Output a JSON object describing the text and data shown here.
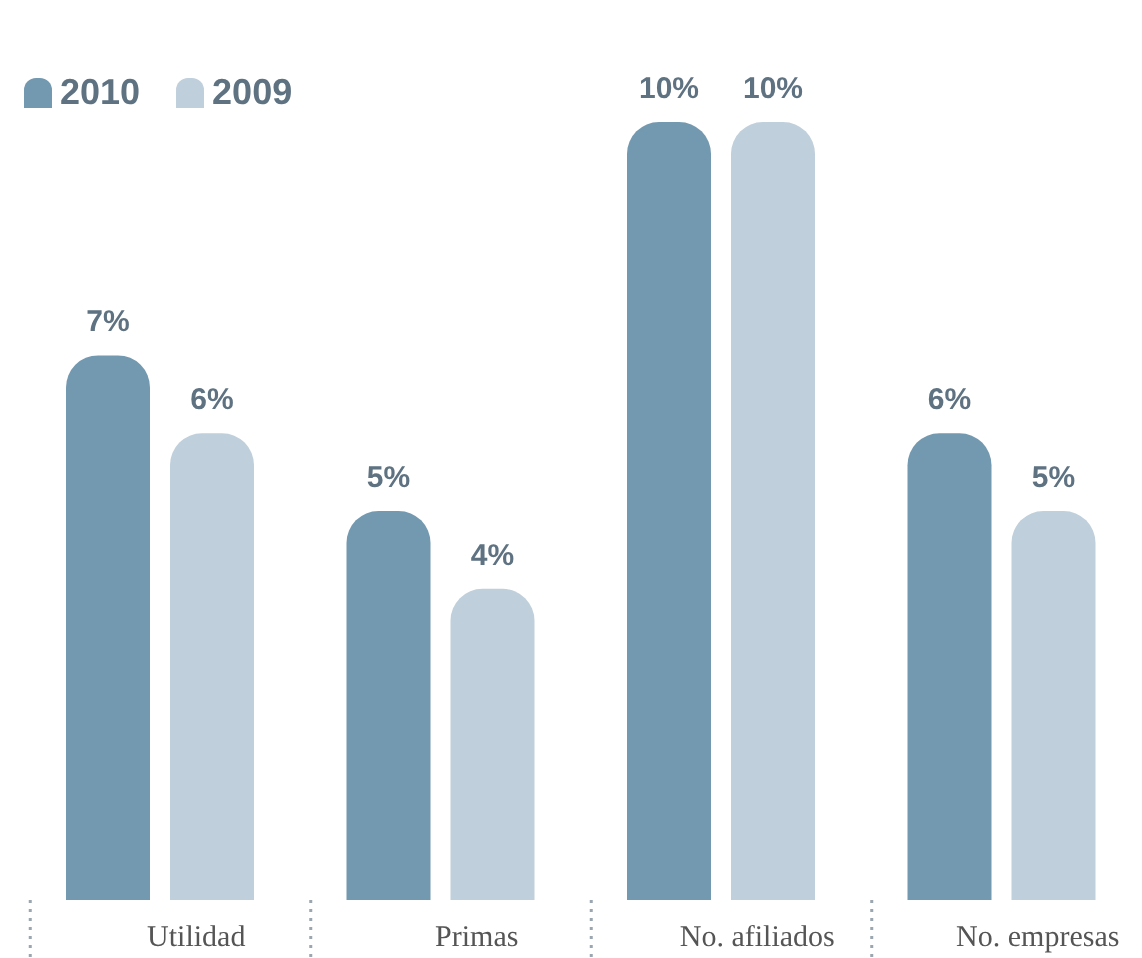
{
  "chart_data": {
    "type": "bar",
    "categories": [
      "Utilidad",
      "Primas",
      "No. afiliados",
      "No. empresas"
    ],
    "series": [
      {
        "name": "2010",
        "color": "#7399b0",
        "values": [
          7,
          5,
          10,
          6
        ],
        "value_labels": [
          "7%",
          "5%",
          "10%",
          "6%"
        ]
      },
      {
        "name": "2009",
        "color": "#bfcfdb",
        "values": [
          6,
          4,
          10,
          5
        ],
        "value_labels": [
          "6%",
          "4%",
          "10%",
          "5%"
        ]
      }
    ],
    "ylim": [
      0,
      10
    ],
    "legend": "top left",
    "grid": false,
    "tick_labels": "x"
  }
}
